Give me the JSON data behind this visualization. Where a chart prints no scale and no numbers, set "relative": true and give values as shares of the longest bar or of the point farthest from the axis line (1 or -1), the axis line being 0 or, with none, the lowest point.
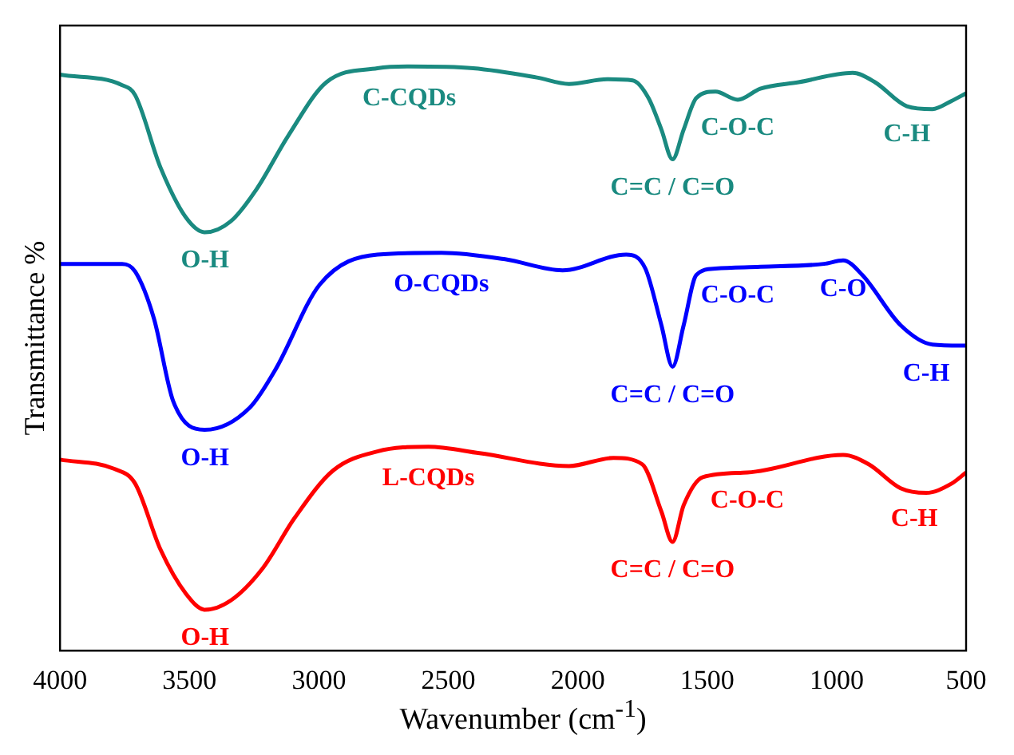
{
  "chart_data": {
    "type": "line",
    "relative": true,
    "xlabel": "Wavenumber (cm$^{-1}$)",
    "ylabel": "Transmittance %",
    "xlim": [
      4000,
      500
    ],
    "xticks": [
      4000,
      3500,
      3000,
      2500,
      2000,
      1500,
      1000,
      500
    ],
    "grid": false,
    "legend": false,
    "marker": "none",
    "line_style": "solid",
    "series": [
      {
        "name": "C-CQDs",
        "color": "#1a8a80",
        "x": [
          4000,
          3760,
          3710,
          3612,
          3513,
          3440,
          3340,
          3242,
          3119,
          2971,
          2774,
          2651,
          2404,
          2158,
          2034,
          1887,
          1788,
          1727,
          1677,
          1634,
          1591,
          1542,
          1468,
          1382,
          1295,
          1147,
          938,
          852,
          729,
          630,
          556,
          500
        ],
        "values": [
          0.986,
          0.968,
          0.951,
          0.827,
          0.741,
          0.716,
          0.735,
          0.789,
          0.881,
          0.973,
          0.997,
          1.0,
          0.997,
          0.981,
          0.97,
          0.978,
          0.976,
          0.946,
          0.892,
          0.841,
          0.892,
          0.946,
          0.957,
          0.943,
          0.962,
          0.973,
          0.989,
          0.973,
          0.932,
          0.927,
          0.941,
          0.954
        ]
      },
      {
        "name": "O-CQDs",
        "color": "#0000ff",
        "x": [
          4000,
          3760,
          3710,
          3637,
          3563,
          3440,
          3267,
          3168,
          2996,
          2774,
          2527,
          2281,
          2059,
          1813,
          1739,
          1677,
          1634,
          1591,
          1542,
          1468,
          1295,
          1049,
          975,
          901,
          753,
          630,
          500
        ],
        "values": [
          0.662,
          0.662,
          0.649,
          0.568,
          0.427,
          0.378,
          0.416,
          0.481,
          0.627,
          0.678,
          0.681,
          0.67,
          0.651,
          0.678,
          0.654,
          0.557,
          0.486,
          0.557,
          0.643,
          0.654,
          0.657,
          0.662,
          0.668,
          0.643,
          0.557,
          0.524,
          0.522
        ]
      },
      {
        "name": "L-CQDs",
        "color": "#ff0000",
        "x": [
          4000,
          3790,
          3710,
          3612,
          3513,
          3440,
          3340,
          3217,
          3094,
          2946,
          2774,
          2577,
          2380,
          2034,
          1862,
          1751,
          1677,
          1634,
          1591,
          1517,
          1345,
          975,
          876,
          753,
          654,
          556,
          500
        ],
        "values": [
          0.327,
          0.311,
          0.286,
          0.173,
          0.097,
          0.07,
          0.086,
          0.141,
          0.227,
          0.308,
          0.341,
          0.349,
          0.338,
          0.316,
          0.33,
          0.319,
          0.238,
          0.186,
          0.249,
          0.297,
          0.305,
          0.335,
          0.319,
          0.278,
          0.27,
          0.286,
          0.305
        ]
      }
    ],
    "annotations": [
      {
        "text": "O-H",
        "x": 3440,
        "y": 0.716
      },
      {
        "text": "C=C / C=O",
        "x": 1634,
        "y": 0.841
      },
      {
        "text": "C-O-C",
        "x": 1382,
        "y": 0.943
      },
      {
        "text": "C-H",
        "x": 729,
        "y": 0.932
      },
      {
        "text": "O-H",
        "x": 3440,
        "y": 0.378
      },
      {
        "text": "C=C / C=O",
        "x": 1634,
        "y": 0.486
      },
      {
        "text": "C-O-C",
        "x": 1382,
        "y": 0.657
      },
      {
        "text": "C-O",
        "x": 975,
        "y": 0.668
      },
      {
        "text": "C-H",
        "x": 565,
        "y": 0.523
      },
      {
        "text": "O-H",
        "x": 3440,
        "y": 0.07
      },
      {
        "text": "C=C / C=O",
        "x": 1634,
        "y": 0.186
      },
      {
        "text": "C-O-C",
        "x": 1345,
        "y": 0.305
      },
      {
        "text": "C-H",
        "x": 700,
        "y": 0.274
      }
    ]
  }
}
